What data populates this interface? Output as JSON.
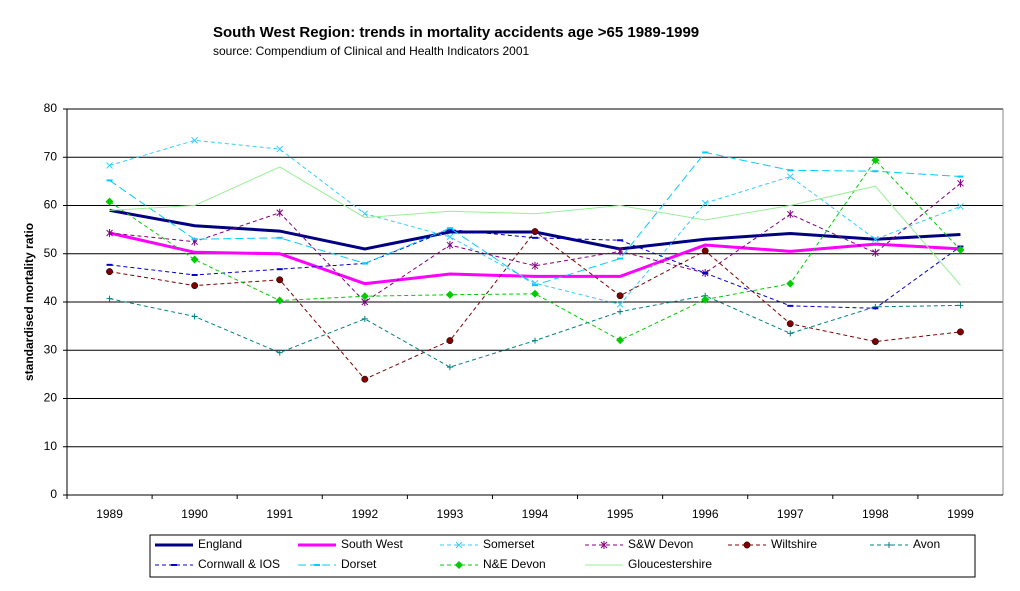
{
  "chart_data": {
    "type": "line",
    "title": "South West Region:  trends in mortality accidents age >65 1989-1999",
    "subtitle": "source: Compendium of Clinical and Health Indicators  2001",
    "y_label": "standardised mortality ratio",
    "categories": [
      "1989",
      "1990",
      "1991",
      "1992",
      "1993",
      "1994",
      "1995",
      "1996",
      "1997",
      "1998",
      "1999"
    ],
    "ylim": [
      0,
      80
    ],
    "yticks": [
      0,
      10,
      20,
      30,
      40,
      50,
      60,
      70,
      80
    ],
    "grid": true,
    "legend": "bottom",
    "series": [
      {
        "name": "England",
        "color": "#000080",
        "dash": "solid",
        "width": 3,
        "marker": "none",
        "values": [
          59,
          55.8,
          54.7,
          51,
          54.5,
          54.5,
          51,
          53,
          54.2,
          53,
          54
        ]
      },
      {
        "name": "South West",
        "color": "#ff00ff",
        "dash": "solid",
        "width": 3,
        "marker": "none",
        "values": [
          54.3,
          50.3,
          50,
          43.8,
          45.8,
          45.3,
          45.3,
          51.8,
          50.5,
          52,
          51
        ]
      },
      {
        "name": "Somerset",
        "color": "#33ccff",
        "dash": "dashed",
        "width": 1,
        "marker": "x",
        "values": [
          68.3,
          73.5,
          71.7,
          58.3,
          53.5,
          43.9,
          39.5,
          60.5,
          66,
          53,
          59.8
        ]
      },
      {
        "name": "S&W Devon",
        "color": "#800080",
        "dash": "dashed",
        "width": 1,
        "marker": "star",
        "values": [
          54.3,
          52.5,
          58.5,
          40,
          51.8,
          47.5,
          50.5,
          46,
          58.2,
          50.2,
          64.6
        ]
      },
      {
        "name": "Wiltshire",
        "color": "#800000",
        "dash": "dashed",
        "width": 1,
        "marker": "circle",
        "values": [
          46.3,
          43.4,
          44.6,
          24,
          32,
          54.6,
          41.3,
          50.6,
          35.5,
          31.8,
          33.8
        ]
      },
      {
        "name": "Avon",
        "color": "#008080",
        "dash": "dashed",
        "width": 1,
        "marker": "plus",
        "values": [
          40.7,
          37,
          29.5,
          36.5,
          26.5,
          32,
          38,
          41.3,
          33.5,
          39,
          39.3
        ]
      },
      {
        "name": "Cornwall & IOS",
        "color": "#0000cc",
        "dash": "dashed",
        "width": 1,
        "marker": "dash",
        "values": [
          47.7,
          45.6,
          46.8,
          48,
          55,
          53.3,
          52.8,
          46,
          39.2,
          38.7,
          51.5
        ]
      },
      {
        "name": "Dorset",
        "color": "#00ccff",
        "dash": "longdash",
        "width": 1,
        "marker": "dash",
        "values": [
          65.2,
          53,
          53.3,
          48,
          55.3,
          43.5,
          49,
          71,
          67.3,
          67.1,
          66
        ]
      },
      {
        "name": "N&E Devon",
        "color": "#00cc00",
        "dash": "dashed",
        "width": 1,
        "marker": "diamond",
        "values": [
          60.8,
          48.8,
          40.3,
          41.2,
          41.5,
          41.7,
          32.1,
          40.5,
          43.8,
          69.4,
          50.8
        ]
      },
      {
        "name": "Gloucestershire",
        "color": "#99ee99",
        "dash": "solid",
        "width": 1,
        "marker": "none",
        "values": [
          59,
          60,
          68,
          57.5,
          58.8,
          58.3,
          60,
          57,
          60,
          64,
          43.5
        ]
      }
    ]
  }
}
